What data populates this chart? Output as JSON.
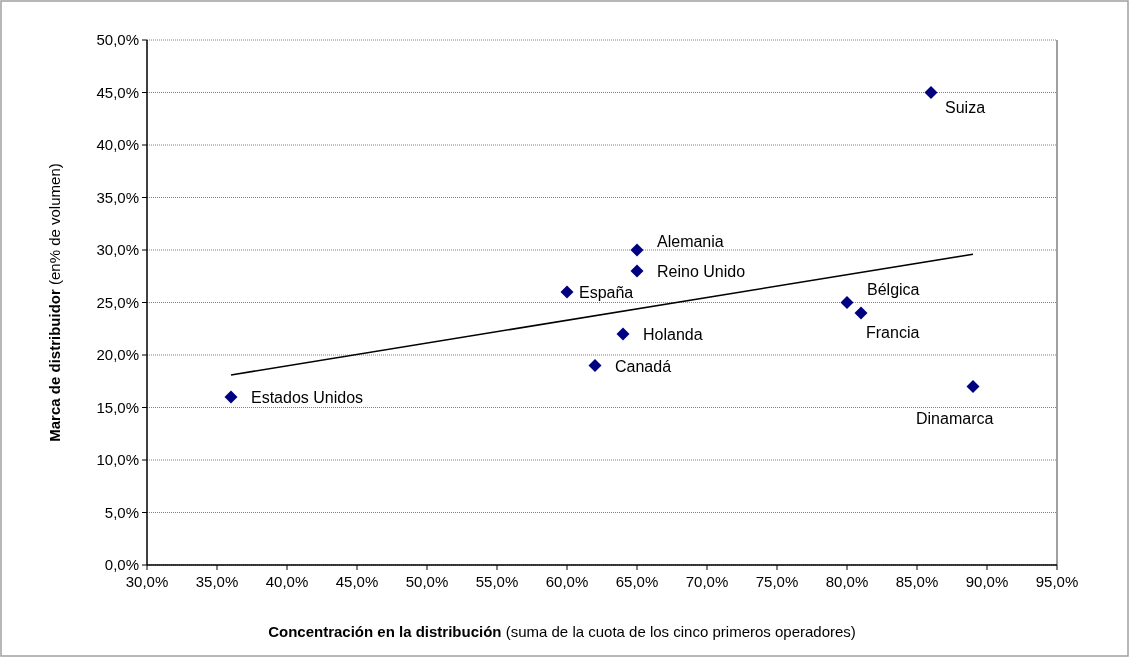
{
  "chart_data": {
    "type": "scatter",
    "xlabel": "Concentración en la distribución (suma de la cuota de los cinco primeros operadores)",
    "ylabel": "Marca de distribuidor (en% de volumen)",
    "xlim": [
      30,
      95
    ],
    "ylim": [
      0,
      50
    ],
    "xticks": [
      {
        "value": 30,
        "label": "30,0%"
      },
      {
        "value": 35,
        "label": "35,0%"
      },
      {
        "value": 40,
        "label": "40,0%"
      },
      {
        "value": 45,
        "label": "45,0%"
      },
      {
        "value": 50,
        "label": "50,0%"
      },
      {
        "value": 55,
        "label": "55,0%"
      },
      {
        "value": 60,
        "label": "60,0%"
      },
      {
        "value": 65,
        "label": "65,0%"
      },
      {
        "value": 70,
        "label": "70,0%"
      },
      {
        "value": 75,
        "label": "75,0%"
      },
      {
        "value": 80,
        "label": "80,0%"
      },
      {
        "value": 85,
        "label": "85,0%"
      },
      {
        "value": 90,
        "label": "90,0%"
      },
      {
        "value": 95,
        "label": "95,0%"
      }
    ],
    "yticks": [
      {
        "value": 0,
        "label": "0,0%"
      },
      {
        "value": 5,
        "label": "5,0%"
      },
      {
        "value": 10,
        "label": "10,0%"
      },
      {
        "value": 15,
        "label": "15,0%"
      },
      {
        "value": 20,
        "label": "20,0%"
      },
      {
        "value": 25,
        "label": "25,0%"
      },
      {
        "value": 30,
        "label": "30,0%"
      },
      {
        "value": 35,
        "label": "35,0%"
      },
      {
        "value": 40,
        "label": "40,0%"
      },
      {
        "value": 45,
        "label": "45,0%"
      },
      {
        "value": 50,
        "label": "50,0%"
      }
    ],
    "grid": "y",
    "marker": "diamond",
    "series": [
      {
        "color": "#000080",
        "x": [
          36,
          60,
          62,
          64,
          65,
          65,
          80,
          81,
          86,
          89
        ],
        "values": [
          16,
          26,
          19,
          22,
          30,
          28,
          25,
          24,
          45,
          17
        ]
      },
      {
        "type": "line",
        "color": "#000000",
        "marker": "none",
        "line_style": "solid",
        "x": [
          36,
          89
        ],
        "values": [
          18.1,
          29.6
        ]
      }
    ],
    "annotations": [
      {
        "text": "Estados Unidos",
        "x": 36,
        "y": 16
      },
      {
        "text": "España",
        "x": 60,
        "y": 26
      },
      {
        "text": "Canadá",
        "x": 62,
        "y": 19
      },
      {
        "text": "Holanda",
        "x": 64,
        "y": 22
      },
      {
        "text": "Alemania",
        "x": 65,
        "y": 30
      },
      {
        "text": "Reino Unido",
        "x": 65,
        "y": 28
      },
      {
        "text": "Bélgica",
        "x": 80,
        "y": 25
      },
      {
        "text": "Francia",
        "x": 81,
        "y": 24
      },
      {
        "text": "Suiza",
        "x": 86,
        "y": 45
      },
      {
        "text": "Dinamarca",
        "x": 89,
        "y": 17
      }
    ]
  }
}
